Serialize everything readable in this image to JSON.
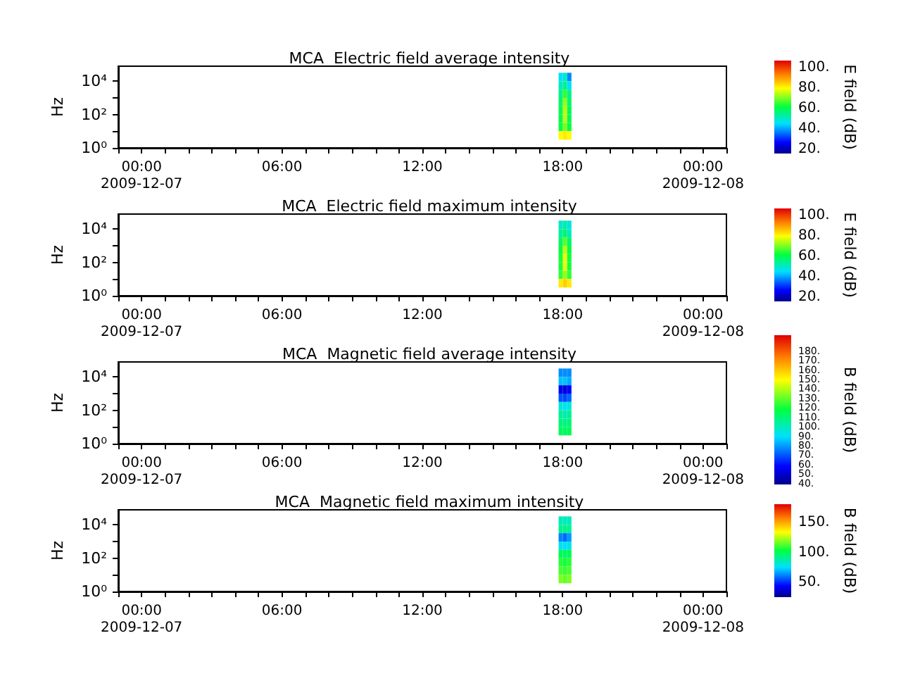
{
  "chart_data": [
    {
      "type": "heatmap",
      "title": "MCA  Electric field average intensity",
      "ylabel": "Hz",
      "clabel": "E field (dB)",
      "log": "y",
      "x": [
        "2009-12-07T17:55",
        "2009-12-07T18:06",
        "2009-12-07T18:17"
      ],
      "y": [
        18000,
        5600,
        1800,
        560,
        180,
        56,
        18,
        5.6
      ],
      "cells": [
        [
          45,
          50,
          38
        ],
        [
          50,
          55,
          45
        ],
        [
          55,
          65,
          55
        ],
        [
          58,
          72,
          58
        ],
        [
          60,
          75,
          60
        ],
        [
          60,
          75,
          60
        ],
        [
          62,
          70,
          62
        ],
        [
          80,
          82,
          80
        ]
      ],
      "xlim": [
        "2009-12-06T23:00",
        "2009-12-08T01:00"
      ],
      "xticks": [
        {
          "value": "2009-12-06T23:00",
          "label": null
        },
        {
          "value": "2009-12-07T00:00",
          "label": "00:00\n2009-12-07"
        },
        {
          "value": "2009-12-07T01:00",
          "label": null
        },
        {
          "value": "2009-12-07T02:00",
          "label": null
        },
        {
          "value": "2009-12-07T03:00",
          "label": null
        },
        {
          "value": "2009-12-07T04:00",
          "label": null
        },
        {
          "value": "2009-12-07T05:00",
          "label": null
        },
        {
          "value": "2009-12-07T06:00",
          "label": "06:00"
        },
        {
          "value": "2009-12-07T07:00",
          "label": null
        },
        {
          "value": "2009-12-07T08:00",
          "label": null
        },
        {
          "value": "2009-12-07T09:00",
          "label": null
        },
        {
          "value": "2009-12-07T10:00",
          "label": null
        },
        {
          "value": "2009-12-07T11:00",
          "label": null
        },
        {
          "value": "2009-12-07T12:00",
          "label": "12:00"
        },
        {
          "value": "2009-12-07T13:00",
          "label": null
        },
        {
          "value": "2009-12-07T14:00",
          "label": null
        },
        {
          "value": "2009-12-07T15:00",
          "label": null
        },
        {
          "value": "2009-12-07T16:00",
          "label": null
        },
        {
          "value": "2009-12-07T17:00",
          "label": null
        },
        {
          "value": "2009-12-07T18:00",
          "label": "18:00"
        },
        {
          "value": "2009-12-07T19:00",
          "label": null
        },
        {
          "value": "2009-12-07T20:00",
          "label": null
        },
        {
          "value": "2009-12-07T21:00",
          "label": null
        },
        {
          "value": "2009-12-07T22:00",
          "label": null
        },
        {
          "value": "2009-12-07T23:00",
          "label": null
        },
        {
          "value": "2009-12-08T00:00",
          "label": "00:00\n2009-12-08"
        },
        {
          "value": "2009-12-08T01:00",
          "label": null
        }
      ],
      "ylim": [
        1,
        80000
      ],
      "yticks": [
        {
          "value": 1,
          "label": "10⁰"
        },
        {
          "value": 10,
          "label": null
        },
        {
          "value": 100,
          "label": "10²"
        },
        {
          "value": 1000,
          "label": null
        },
        {
          "value": 10000,
          "label": "10⁴"
        }
      ],
      "clim": [
        16,
        107
      ],
      "cticks": [
        {
          "value": 20,
          "label": "20."
        },
        {
          "value": 30,
          "label": null
        },
        {
          "value": 40,
          "label": "40."
        },
        {
          "value": 50,
          "label": null
        },
        {
          "value": 60,
          "label": "60."
        },
        {
          "value": 70,
          "label": null
        },
        {
          "value": 80,
          "label": "80."
        },
        {
          "value": 90,
          "label": null
        },
        {
          "value": 100,
          "label": "100."
        }
      ]
    },
    {
      "type": "heatmap",
      "title": "MCA  Electric field maximum intensity",
      "ylabel": "Hz",
      "clabel": "E field (dB)",
      "log": "y",
      "x": [
        "2009-12-07T17:55",
        "2009-12-07T18:06",
        "2009-12-07T18:17"
      ],
      "y": [
        18000,
        5600,
        1800,
        560,
        180,
        56,
        18,
        5.6
      ],
      "cells": [
        [
          50,
          52,
          48
        ],
        [
          53,
          58,
          50
        ],
        [
          58,
          68,
          58
        ],
        [
          62,
          75,
          62
        ],
        [
          63,
          78,
          63
        ],
        [
          63,
          78,
          63
        ],
        [
          65,
          72,
          65
        ],
        [
          82,
          85,
          82
        ]
      ],
      "xlim": [
        "2009-12-06T23:00",
        "2009-12-08T01:00"
      ],
      "xticks": [
        {
          "value": "2009-12-06T23:00",
          "label": null
        },
        {
          "value": "2009-12-07T00:00",
          "label": "00:00\n2009-12-07"
        },
        {
          "value": "2009-12-07T01:00",
          "label": null
        },
        {
          "value": "2009-12-07T02:00",
          "label": null
        },
        {
          "value": "2009-12-07T03:00",
          "label": null
        },
        {
          "value": "2009-12-07T04:00",
          "label": null
        },
        {
          "value": "2009-12-07T05:00",
          "label": null
        },
        {
          "value": "2009-12-07T06:00",
          "label": "06:00"
        },
        {
          "value": "2009-12-07T07:00",
          "label": null
        },
        {
          "value": "2009-12-07T08:00",
          "label": null
        },
        {
          "value": "2009-12-07T09:00",
          "label": null
        },
        {
          "value": "2009-12-07T10:00",
          "label": null
        },
        {
          "value": "2009-12-07T11:00",
          "label": null
        },
        {
          "value": "2009-12-07T12:00",
          "label": "12:00"
        },
        {
          "value": "2009-12-07T13:00",
          "label": null
        },
        {
          "value": "2009-12-07T14:00",
          "label": null
        },
        {
          "value": "2009-12-07T15:00",
          "label": null
        },
        {
          "value": "2009-12-07T16:00",
          "label": null
        },
        {
          "value": "2009-12-07T17:00",
          "label": null
        },
        {
          "value": "2009-12-07T18:00",
          "label": "18:00"
        },
        {
          "value": "2009-12-07T19:00",
          "label": null
        },
        {
          "value": "2009-12-07T20:00",
          "label": null
        },
        {
          "value": "2009-12-07T21:00",
          "label": null
        },
        {
          "value": "2009-12-07T22:00",
          "label": null
        },
        {
          "value": "2009-12-07T23:00",
          "label": null
        },
        {
          "value": "2009-12-08T00:00",
          "label": "00:00\n2009-12-08"
        },
        {
          "value": "2009-12-08T01:00",
          "label": null
        }
      ],
      "ylim": [
        1,
        80000
      ],
      "yticks": [
        {
          "value": 1,
          "label": "10⁰"
        },
        {
          "value": 10,
          "label": null
        },
        {
          "value": 100,
          "label": "10²"
        },
        {
          "value": 1000,
          "label": null
        },
        {
          "value": 10000,
          "label": "10⁴"
        }
      ],
      "clim": [
        16,
        107
      ],
      "cticks": [
        {
          "value": 20,
          "label": "20."
        },
        {
          "value": 30,
          "label": null
        },
        {
          "value": 40,
          "label": "40."
        },
        {
          "value": 50,
          "label": null
        },
        {
          "value": 60,
          "label": "60."
        },
        {
          "value": 70,
          "label": null
        },
        {
          "value": 80,
          "label": "80."
        },
        {
          "value": 90,
          "label": null
        },
        {
          "value": 100,
          "label": "100."
        }
      ]
    },
    {
      "type": "heatmap",
      "title": "MCA  Magnetic field average intensity",
      "ylabel": "Hz",
      "clabel": "B field (dB)",
      "log": "y",
      "x": [
        "2009-12-07T17:55",
        "2009-12-07T18:06",
        "2009-12-07T18:17"
      ],
      "y": [
        18000,
        5600,
        1800,
        560,
        180,
        56,
        18,
        5.6
      ],
      "cells": [
        [
          78,
          78,
          78
        ],
        [
          85,
          85,
          82
        ],
        [
          55,
          50,
          58
        ],
        [
          70,
          68,
          72
        ],
        [
          95,
          92,
          95
        ],
        [
          105,
          100,
          105
        ],
        [
          110,
          108,
          110
        ],
        [
          115,
          112,
          115
        ]
      ],
      "xlim": [
        "2009-12-06T23:00",
        "2009-12-08T01:00"
      ],
      "xticks": [
        {
          "value": "2009-12-06T23:00",
          "label": null
        },
        {
          "value": "2009-12-07T00:00",
          "label": "00:00\n2009-12-07"
        },
        {
          "value": "2009-12-07T01:00",
          "label": null
        },
        {
          "value": "2009-12-07T02:00",
          "label": null
        },
        {
          "value": "2009-12-07T03:00",
          "label": null
        },
        {
          "value": "2009-12-07T04:00",
          "label": null
        },
        {
          "value": "2009-12-07T05:00",
          "label": null
        },
        {
          "value": "2009-12-07T06:00",
          "label": "06:00"
        },
        {
          "value": "2009-12-07T07:00",
          "label": null
        },
        {
          "value": "2009-12-07T08:00",
          "label": null
        },
        {
          "value": "2009-12-07T09:00",
          "label": null
        },
        {
          "value": "2009-12-07T10:00",
          "label": null
        },
        {
          "value": "2009-12-07T11:00",
          "label": null
        },
        {
          "value": "2009-12-07T12:00",
          "label": "12:00"
        },
        {
          "value": "2009-12-07T13:00",
          "label": null
        },
        {
          "value": "2009-12-07T14:00",
          "label": null
        },
        {
          "value": "2009-12-07T15:00",
          "label": null
        },
        {
          "value": "2009-12-07T16:00",
          "label": null
        },
        {
          "value": "2009-12-07T17:00",
          "label": null
        },
        {
          "value": "2009-12-07T18:00",
          "label": "18:00"
        },
        {
          "value": "2009-12-07T19:00",
          "label": null
        },
        {
          "value": "2009-12-07T20:00",
          "label": null
        },
        {
          "value": "2009-12-07T21:00",
          "label": null
        },
        {
          "value": "2009-12-07T22:00",
          "label": null
        },
        {
          "value": "2009-12-07T23:00",
          "label": null
        },
        {
          "value": "2009-12-08T00:00",
          "label": "00:00\n2009-12-08"
        },
        {
          "value": "2009-12-08T01:00",
          "label": null
        }
      ],
      "ylim": [
        1,
        80000
      ],
      "yticks": [
        {
          "value": 1,
          "label": "10⁰"
        },
        {
          "value": 10,
          "label": null
        },
        {
          "value": 100,
          "label": "10²"
        },
        {
          "value": 1000,
          "label": null
        },
        {
          "value": 10000,
          "label": "10⁴"
        }
      ],
      "clim": [
        39,
        197
      ],
      "cticks": [
        {
          "value": 40,
          "label": "40."
        },
        {
          "value": 50,
          "label": "50."
        },
        {
          "value": 60,
          "label": "60."
        },
        {
          "value": 70,
          "label": "70."
        },
        {
          "value": 80,
          "label": "80."
        },
        {
          "value": 90,
          "label": "90."
        },
        {
          "value": 100,
          "label": "100."
        },
        {
          "value": 110,
          "label": "110."
        },
        {
          "value": 120,
          "label": "120."
        },
        {
          "value": 130,
          "label": "130."
        },
        {
          "value": 140,
          "label": "140."
        },
        {
          "value": 150,
          "label": "150."
        },
        {
          "value": 160,
          "label": "160."
        },
        {
          "value": 170,
          "label": "170."
        },
        {
          "value": 180,
          "label": "180."
        }
      ]
    },
    {
      "type": "heatmap",
      "title": "MCA  Magnetic field maximum intensity",
      "ylabel": "Hz",
      "clabel": "B field (dB)",
      "log": "y",
      "x": [
        "2009-12-07T17:55",
        "2009-12-07T18:06",
        "2009-12-07T18:17"
      ],
      "y": [
        18000,
        5600,
        1800,
        560,
        180,
        56,
        18,
        5.6
      ],
      "cells": [
        [
          85,
          85,
          85
        ],
        [
          92,
          92,
          90
        ],
        [
          62,
          58,
          65
        ],
        [
          78,
          75,
          78
        ],
        [
          100,
          98,
          100
        ],
        [
          108,
          105,
          108
        ],
        [
          112,
          110,
          112
        ],
        [
          118,
          115,
          118
        ]
      ],
      "xlim": [
        "2009-12-06T23:00",
        "2009-12-08T01:00"
      ],
      "xticks": [
        {
          "value": "2009-12-06T23:00",
          "label": null
        },
        {
          "value": "2009-12-07T00:00",
          "label": "00:00\n2009-12-07"
        },
        {
          "value": "2009-12-07T01:00",
          "label": null
        },
        {
          "value": "2009-12-07T02:00",
          "label": null
        },
        {
          "value": "2009-12-07T03:00",
          "label": null
        },
        {
          "value": "2009-12-07T04:00",
          "label": null
        },
        {
          "value": "2009-12-07T05:00",
          "label": null
        },
        {
          "value": "2009-12-07T06:00",
          "label": "06:00"
        },
        {
          "value": "2009-12-07T07:00",
          "label": null
        },
        {
          "value": "2009-12-07T08:00",
          "label": null
        },
        {
          "value": "2009-12-07T09:00",
          "label": null
        },
        {
          "value": "2009-12-07T10:00",
          "label": null
        },
        {
          "value": "2009-12-07T11:00",
          "label": null
        },
        {
          "value": "2009-12-07T12:00",
          "label": "12:00"
        },
        {
          "value": "2009-12-07T13:00",
          "label": null
        },
        {
          "value": "2009-12-07T14:00",
          "label": null
        },
        {
          "value": "2009-12-07T15:00",
          "label": null
        },
        {
          "value": "2009-12-07T16:00",
          "label": null
        },
        {
          "value": "2009-12-07T17:00",
          "label": null
        },
        {
          "value": "2009-12-07T18:00",
          "label": "18:00"
        },
        {
          "value": "2009-12-07T19:00",
          "label": null
        },
        {
          "value": "2009-12-07T20:00",
          "label": null
        },
        {
          "value": "2009-12-07T21:00",
          "label": null
        },
        {
          "value": "2009-12-07T22:00",
          "label": null
        },
        {
          "value": "2009-12-07T23:00",
          "label": null
        },
        {
          "value": "2009-12-08T00:00",
          "label": "00:00\n2009-12-08"
        },
        {
          "value": "2009-12-08T01:00",
          "label": null
        }
      ],
      "ylim": [
        1,
        80000
      ],
      "yticks": [
        {
          "value": 1,
          "label": "10⁰"
        },
        {
          "value": 10,
          "label": null
        },
        {
          "value": 100,
          "label": "10²"
        },
        {
          "value": 1000,
          "label": null
        },
        {
          "value": 10000,
          "label": "10⁴"
        }
      ],
      "clim": [
        25,
        181
      ],
      "cticks": [
        {
          "value": 40,
          "label": null
        },
        {
          "value": 50,
          "label": "50."
        },
        {
          "value": 60,
          "label": null
        },
        {
          "value": 70,
          "label": null
        },
        {
          "value": 80,
          "label": null
        },
        {
          "value": 90,
          "label": null
        },
        {
          "value": 100,
          "label": "100."
        },
        {
          "value": 110,
          "label": null
        },
        {
          "value": 120,
          "label": null
        },
        {
          "value": 130,
          "label": null
        },
        {
          "value": 140,
          "label": null
        },
        {
          "value": 150,
          "label": "150."
        },
        {
          "value": 160,
          "label": null
        },
        {
          "value": 170,
          "label": null
        },
        {
          "value": 180,
          "label": null
        }
      ]
    }
  ]
}
